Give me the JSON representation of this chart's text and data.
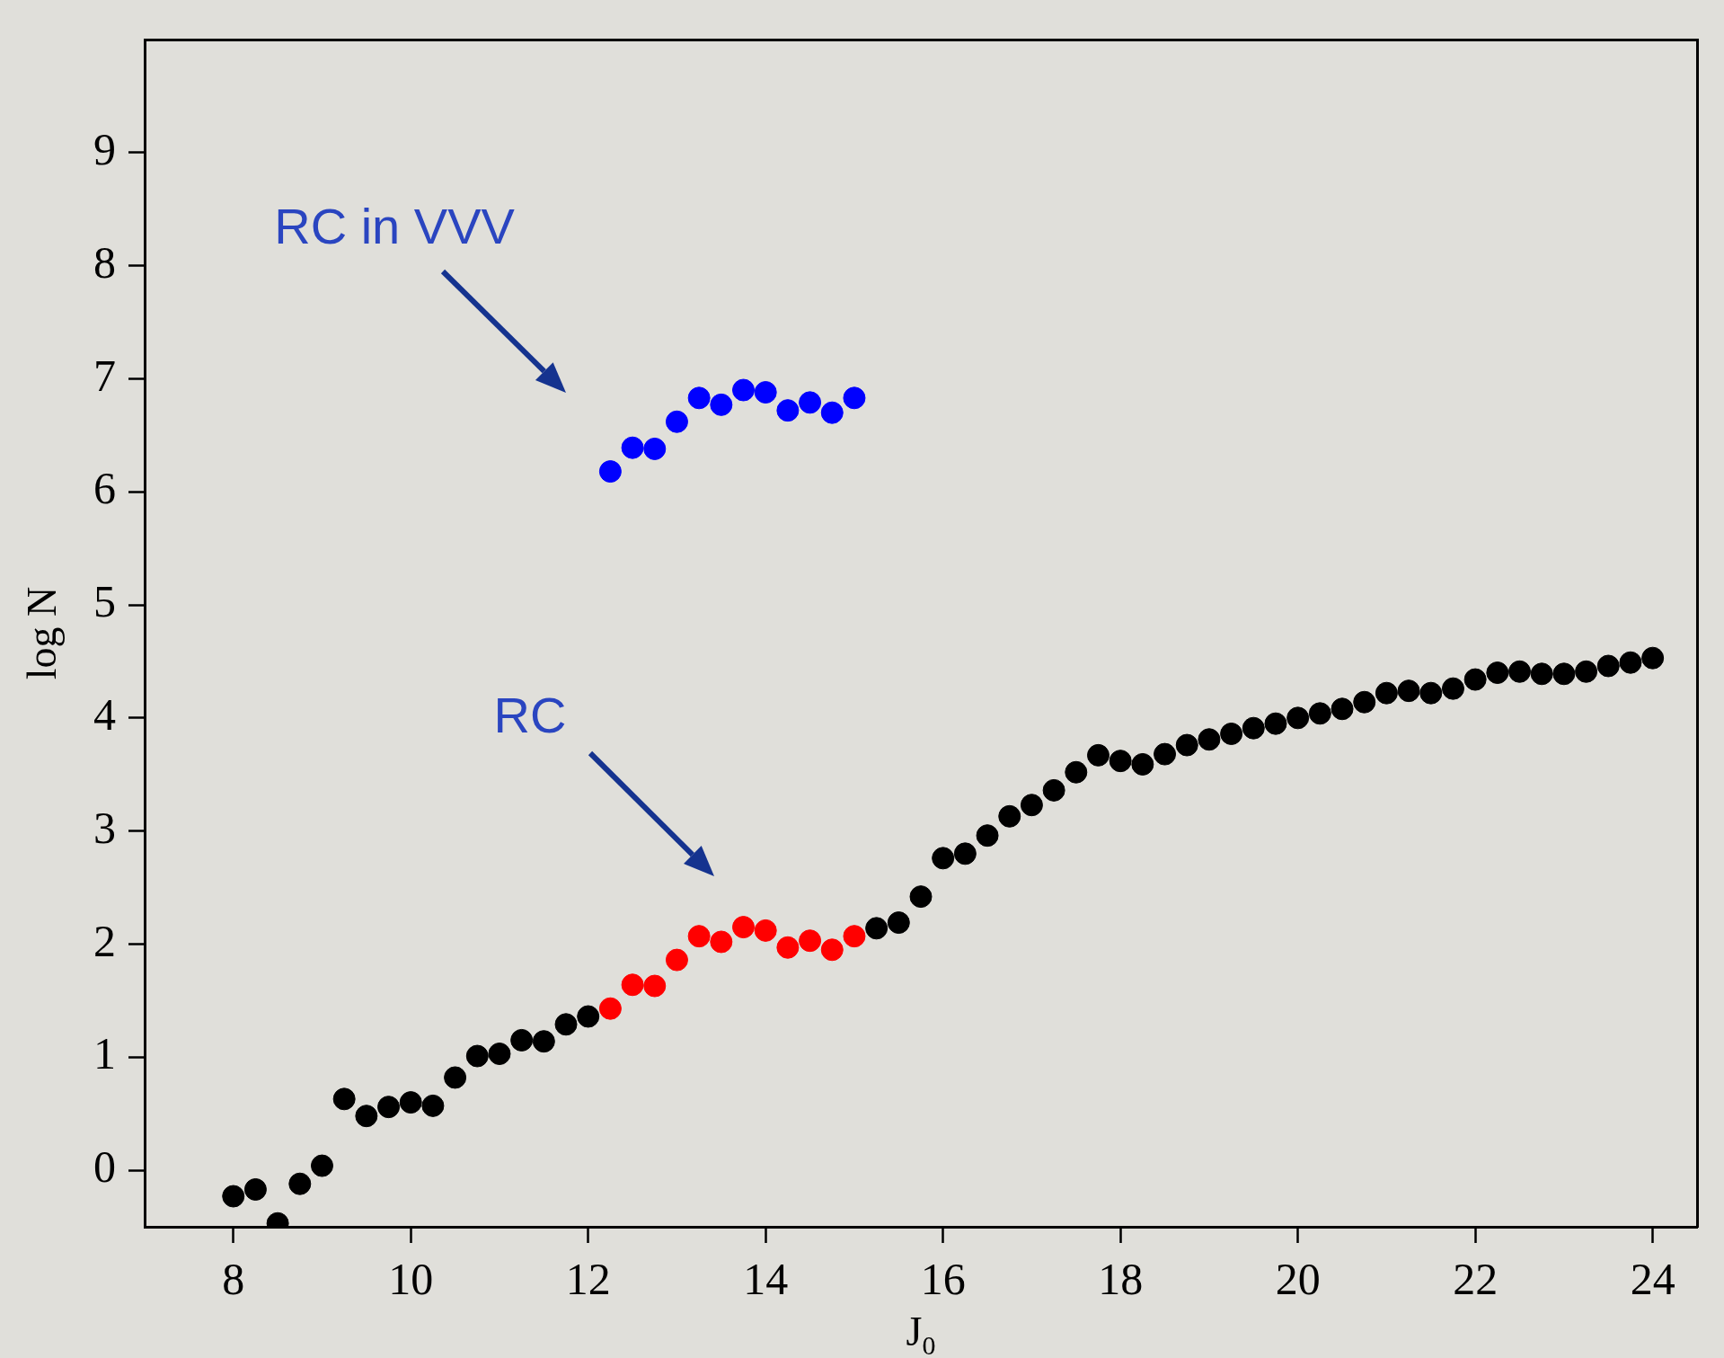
{
  "chart_data": {
    "type": "scatter",
    "xlabel": "J$_{0}$",
    "ylabel": "log N",
    "marker": "circle",
    "grid": false,
    "legend": false,
    "xlim": [
      7,
      24.5
    ],
    "ylim": [
      -0.5,
      10
    ],
    "xticks": [
      8,
      10,
      12,
      14,
      16,
      18,
      20,
      22,
      24
    ],
    "yticks": [
      0,
      1,
      2,
      3,
      4,
      5,
      6,
      7,
      8,
      9
    ],
    "series": [
      {
        "color": "#000000",
        "x": [
          8,
          8.25,
          8.5,
          8.75,
          9,
          9.25,
          9.5,
          9.75,
          10,
          10.25,
          10.5,
          10.75,
          11,
          11.25,
          11.5,
          11.75,
          12,
          15.25,
          15.5,
          15.75,
          16,
          16.25,
          16.5,
          16.75,
          17,
          17.25,
          17.5,
          17.75,
          18,
          18.25,
          18.5,
          18.75,
          19,
          19.25,
          19.5,
          19.75,
          20,
          20.25,
          20.5,
          20.75,
          21,
          21.25,
          21.5,
          21.75,
          22,
          22.25,
          22.5,
          22.75,
          23,
          23.25,
          23.5,
          23.75,
          24
        ],
        "values": [
          -0.23,
          -0.17,
          -0.47,
          -0.12,
          0.04,
          0.63,
          0.48,
          0.56,
          0.6,
          0.57,
          0.82,
          1.01,
          1.03,
          1.15,
          1.14,
          1.29,
          1.36,
          2.14,
          2.19,
          2.42,
          2.76,
          2.8,
          2.96,
          3.13,
          3.23,
          3.36,
          3.52,
          3.67,
          3.62,
          3.59,
          3.68,
          3.76,
          3.81,
          3.86,
          3.91,
          3.95,
          4.0,
          4.04,
          4.08,
          4.14,
          4.22,
          4.24,
          4.22,
          4.26,
          4.34,
          4.4,
          4.41,
          4.39,
          4.39,
          4.41,
          4.46,
          4.49,
          4.53
        ]
      },
      {
        "color": "#ff0000",
        "x": [
          12.25,
          12.5,
          12.75,
          13,
          13.25,
          13.5,
          13.75,
          14,
          14.25,
          14.5,
          14.75,
          15
        ],
        "values": [
          1.43,
          1.64,
          1.63,
          1.86,
          2.07,
          2.02,
          2.15,
          2.12,
          1.97,
          2.03,
          1.95,
          2.07
        ]
      },
      {
        "color": "#0000ff",
        "x": [
          12.25,
          12.5,
          12.75,
          13,
          13.25,
          13.5,
          13.75,
          14,
          14.25,
          14.5,
          14.75,
          15
        ],
        "values": [
          6.18,
          6.39,
          6.38,
          6.62,
          6.83,
          6.77,
          6.9,
          6.88,
          6.72,
          6.79,
          6.7,
          6.83
        ]
      }
    ],
    "annotations": [
      "RC in VVV",
      "RC"
    ]
  }
}
